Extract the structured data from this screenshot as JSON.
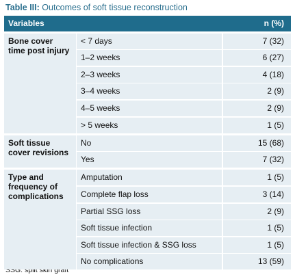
{
  "caption": {
    "label": "Table III:",
    "text": "Outcomes of soft tissue reconstruction"
  },
  "table": {
    "header": [
      "Variables",
      "n (%)"
    ],
    "groups": [
      {
        "label": "Bone cover time post injury",
        "rows": [
          [
            "< 7 days",
            "7 (32)"
          ],
          [
            "1–2 weeks",
            "6 (27)"
          ],
          [
            "2–3 weeks",
            "4 (18)"
          ],
          [
            "3–4 weeks",
            "2 (9)"
          ],
          [
            "4–5 weeks",
            "2 (9)"
          ],
          [
            "> 5 weeks",
            "1 (5)"
          ]
        ]
      },
      {
        "label": "Soft tissue cover revisions",
        "rows": [
          [
            "No",
            "15 (68)"
          ],
          [
            "Yes",
            "7 (32)"
          ]
        ]
      },
      {
        "label": "Type and frequency of complications",
        "rows": [
          [
            "Amputation",
            "1 (5)"
          ],
          [
            "Complete flap loss",
            "3 (14)"
          ],
          [
            "Partial SSG loss",
            "2 (9)"
          ],
          [
            "Soft tissue infection",
            "1 (5)"
          ],
          [
            "Soft tissue infection & SSG loss",
            "1 (5)"
          ],
          [
            "No complications",
            "13 (59)"
          ]
        ]
      }
    ]
  },
  "footnote": "SSG: split skin graft"
}
